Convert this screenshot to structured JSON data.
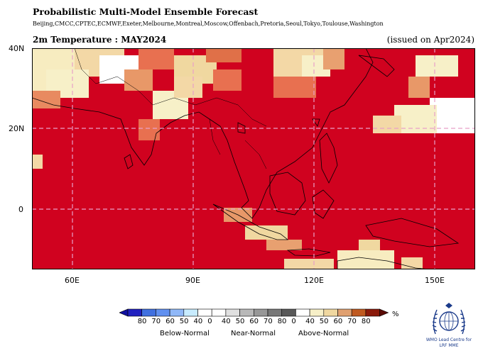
{
  "header": {
    "title": "Probabilistic Multi-Model Ensemble Forecast",
    "centres": "Beijing,CMCC,CPTEC,ECMWF,Exeter,Melbourne,Montreal,Moscow,Offenbach,Pretoria,Seoul,Tokyo,Toulouse,Washington",
    "variable": "2m Temperature : MAY2024",
    "issued": "(issued on Apr2024)"
  },
  "axes": {
    "lat_labels": [
      "40N",
      "20N",
      "0"
    ],
    "lon_labels": [
      "60E",
      "90E",
      "120E",
      "150E"
    ]
  },
  "colorbar": {
    "numbers": [
      "80",
      "70",
      "60",
      "50",
      "40",
      "0",
      "40",
      "50",
      "60",
      "70",
      "80",
      "0",
      "40",
      "50",
      "60",
      "70",
      "80"
    ],
    "categories": [
      "Below-Normal",
      "Near-Normal",
      "Above-Normal"
    ],
    "unit": "%",
    "colors": [
      "#2020c0",
      "#4070e0",
      "#6090f0",
      "#90b8f8",
      "#c8ecff",
      "#ffffff",
      "#ffffff",
      "#e0e0e0",
      "#b8b8b8",
      "#989898",
      "#787878",
      "#585858",
      "#ffffff",
      "#f7f0c8",
      "#f0d8a0",
      "#e0a070",
      "#c05a20",
      "#8b1a0a"
    ]
  },
  "logo": {
    "text": "WMO Lead Centre for LRF MME"
  }
}
